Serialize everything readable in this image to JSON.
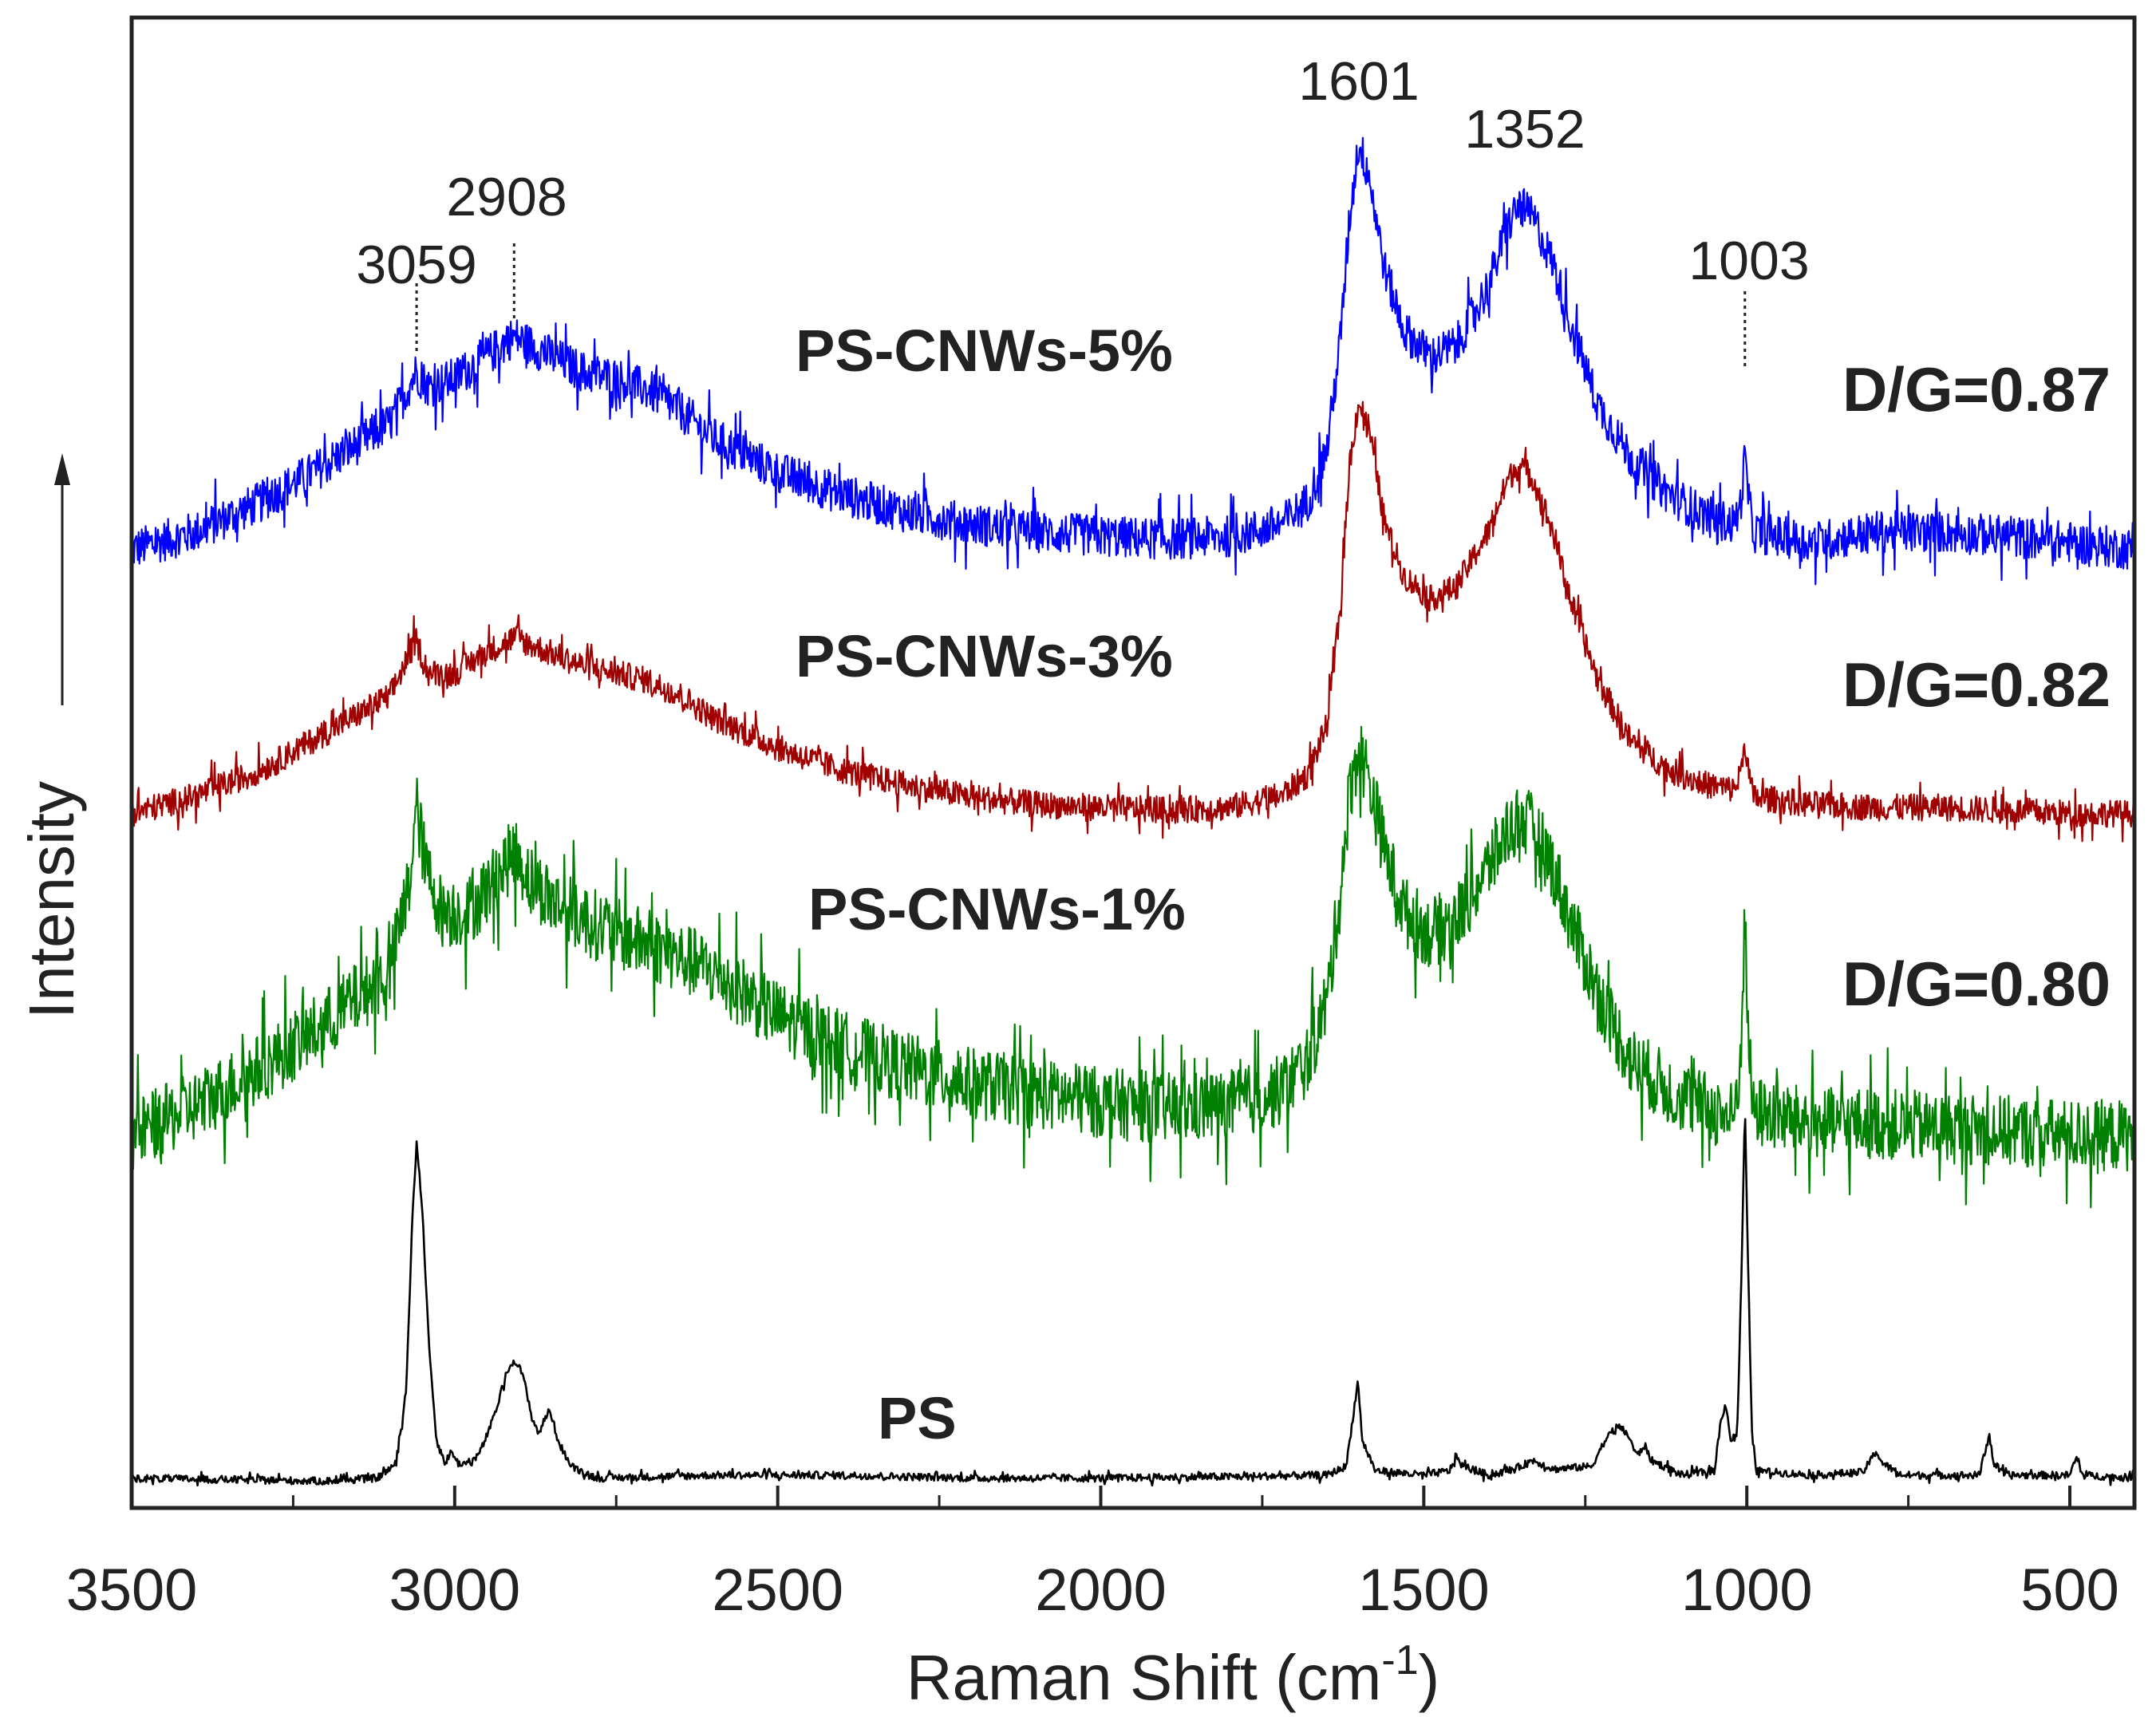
{
  "chart_data": {
    "type": "line",
    "title": "",
    "xlabel_main": "Raman Shift (cm",
    "xlabel_sup": "-1",
    "xlabel_tail": ")",
    "ylabel": "Intensity",
    "x_reversed": true,
    "xlim": [
      3500,
      400
    ],
    "ylim": [
      0,
      1
    ],
    "x_ticks": [
      3500,
      3000,
      2500,
      2000,
      1500,
      1000,
      500
    ],
    "y_ticks": [],
    "grid": false,
    "peak_markers": [
      {
        "x": 3059,
        "label": "3059"
      },
      {
        "x": 2908,
        "label": "2908"
      },
      {
        "x": 1601,
        "label": "1601"
      },
      {
        "x": 1352,
        "label": "1352"
      },
      {
        "x": 1003,
        "label": "1003"
      }
    ],
    "series": [
      {
        "name": "PS-CNWs-5%",
        "color": "#0000ff",
        "ratio_label": "D/G=0.87",
        "noise": 0.014,
        "points": [
          [
            3500,
            0.643
          ],
          [
            3400,
            0.655
          ],
          [
            3300,
            0.675
          ],
          [
            3200,
            0.7
          ],
          [
            3100,
            0.728
          ],
          [
            3060,
            0.762
          ],
          [
            3040,
            0.752
          ],
          [
            3000,
            0.758
          ],
          [
            2960,
            0.77
          ],
          [
            2908,
            0.786
          ],
          [
            2860,
            0.775
          ],
          [
            2800,
            0.762
          ],
          [
            2750,
            0.758
          ],
          [
            2700,
            0.75
          ],
          [
            2650,
            0.736
          ],
          [
            2600,
            0.718
          ],
          [
            2500,
            0.695
          ],
          [
            2400,
            0.68
          ],
          [
            2300,
            0.668
          ],
          [
            2200,
            0.66
          ],
          [
            2100,
            0.655
          ],
          [
            2000,
            0.652
          ],
          [
            1900,
            0.65
          ],
          [
            1800,
            0.652
          ],
          [
            1720,
            0.66
          ],
          [
            1680,
            0.675
          ],
          [
            1650,
            0.71
          ],
          [
            1630,
            0.78
          ],
          [
            1615,
            0.865
          ],
          [
            1601,
            0.915
          ],
          [
            1585,
            0.895
          ],
          [
            1560,
            0.83
          ],
          [
            1530,
            0.79
          ],
          [
            1490,
            0.772
          ],
          [
            1450,
            0.78
          ],
          [
            1400,
            0.82
          ],
          [
            1370,
            0.86
          ],
          [
            1352,
            0.874
          ],
          [
            1330,
            0.865
          ],
          [
            1300,
            0.835
          ],
          [
            1270,
            0.79
          ],
          [
            1230,
            0.74
          ],
          [
            1180,
            0.705
          ],
          [
            1120,
            0.68
          ],
          [
            1060,
            0.665
          ],
          [
            1020,
            0.66
          ],
          [
            1010,
            0.672
          ],
          [
            1003,
            0.705
          ],
          [
            996,
            0.672
          ],
          [
            990,
            0.655
          ],
          [
            900,
            0.648
          ],
          [
            800,
            0.655
          ],
          [
            700,
            0.655
          ],
          [
            600,
            0.652
          ],
          [
            500,
            0.648
          ],
          [
            400,
            0.643
          ]
        ]
      },
      {
        "name": "PS-CNWs-3%",
        "color": "#a10000",
        "ratio_label": "D/G=0.82",
        "noise": 0.009,
        "points": [
          [
            3500,
            0.466
          ],
          [
            3400,
            0.478
          ],
          [
            3300,
            0.495
          ],
          [
            3200,
            0.52
          ],
          [
            3100,
            0.545
          ],
          [
            3060,
            0.582
          ],
          [
            3040,
            0.56
          ],
          [
            3000,
            0.56
          ],
          [
            2960,
            0.572
          ],
          [
            2908,
            0.584
          ],
          [
            2860,
            0.575
          ],
          [
            2800,
            0.565
          ],
          [
            2750,
            0.56
          ],
          [
            2700,
            0.555
          ],
          [
            2650,
            0.545
          ],
          [
            2600,
            0.53
          ],
          [
            2500,
            0.51
          ],
          [
            2400,
            0.495
          ],
          [
            2300,
            0.485
          ],
          [
            2200,
            0.477
          ],
          [
            2100,
            0.472
          ],
          [
            2000,
            0.47
          ],
          [
            1900,
            0.468
          ],
          [
            1800,
            0.47
          ],
          [
            1720,
            0.478
          ],
          [
            1680,
            0.492
          ],
          [
            1650,
            0.525
          ],
          [
            1630,
            0.6
          ],
          [
            1615,
            0.7
          ],
          [
            1601,
            0.742
          ],
          [
            1585,
            0.725
          ],
          [
            1560,
            0.66
          ],
          [
            1530,
            0.625
          ],
          [
            1490,
            0.61
          ],
          [
            1450,
            0.618
          ],
          [
            1400,
            0.655
          ],
          [
            1370,
            0.69
          ],
          [
            1352,
            0.7
          ],
          [
            1330,
            0.69
          ],
          [
            1300,
            0.655
          ],
          [
            1270,
            0.605
          ],
          [
            1230,
            0.555
          ],
          [
            1180,
            0.515
          ],
          [
            1120,
            0.495
          ],
          [
            1060,
            0.485
          ],
          [
            1020,
            0.482
          ],
          [
            1010,
            0.492
          ],
          [
            1003,
            0.515
          ],
          [
            996,
            0.49
          ],
          [
            990,
            0.477
          ],
          [
            900,
            0.472
          ],
          [
            800,
            0.47
          ],
          [
            700,
            0.47
          ],
          [
            600,
            0.468
          ],
          [
            500,
            0.466
          ],
          [
            400,
            0.466
          ]
        ]
      },
      {
        "name": "PS-CNWs-1%",
        "color": "#008000",
        "ratio_label": "D/G=0.80",
        "noise": 0.024,
        "points": [
          [
            3500,
            0.25
          ],
          [
            3400,
            0.27
          ],
          [
            3300,
            0.295
          ],
          [
            3200,
            0.325
          ],
          [
            3100,
            0.36
          ],
          [
            3070,
            0.42
          ],
          [
            3059,
            0.47
          ],
          [
            3045,
            0.43
          ],
          [
            3020,
            0.4
          ],
          [
            2980,
            0.4
          ],
          [
            2940,
            0.42
          ],
          [
            2908,
            0.44
          ],
          [
            2880,
            0.42
          ],
          [
            2840,
            0.405
          ],
          [
            2800,
            0.395
          ],
          [
            2750,
            0.385
          ],
          [
            2700,
            0.378
          ],
          [
            2600,
            0.36
          ],
          [
            2500,
            0.33
          ],
          [
            2400,
            0.31
          ],
          [
            2300,
            0.295
          ],
          [
            2200,
            0.285
          ],
          [
            2100,
            0.278
          ],
          [
            2000,
            0.272
          ],
          [
            1900,
            0.268
          ],
          [
            1800,
            0.27
          ],
          [
            1720,
            0.28
          ],
          [
            1680,
            0.3
          ],
          [
            1650,
            0.34
          ],
          [
            1630,
            0.41
          ],
          [
            1615,
            0.48
          ],
          [
            1601,
            0.51
          ],
          [
            1585,
            0.49
          ],
          [
            1560,
            0.44
          ],
          [
            1530,
            0.4
          ],
          [
            1490,
            0.385
          ],
          [
            1450,
            0.395
          ],
          [
            1400,
            0.43
          ],
          [
            1370,
            0.455
          ],
          [
            1352,
            0.463
          ],
          [
            1330,
            0.455
          ],
          [
            1300,
            0.43
          ],
          [
            1270,
            0.39
          ],
          [
            1230,
            0.345
          ],
          [
            1180,
            0.3
          ],
          [
            1120,
            0.28
          ],
          [
            1060,
            0.268
          ],
          [
            1020,
            0.262
          ],
          [
            1010,
            0.3
          ],
          [
            1003,
            0.395
          ],
          [
            996,
            0.3
          ],
          [
            990,
            0.266
          ],
          [
            900,
            0.258
          ],
          [
            800,
            0.258
          ],
          [
            700,
            0.255
          ],
          [
            600,
            0.253
          ],
          [
            500,
            0.25
          ],
          [
            400,
            0.25
          ]
        ]
      },
      {
        "name": "PS",
        "color": "#000000",
        "ratio_label": "",
        "noise": 0.0025,
        "points": [
          [
            3500,
            0.02
          ],
          [
            3200,
            0.018
          ],
          [
            3120,
            0.02
          ],
          [
            3090,
            0.03
          ],
          [
            3075,
            0.08
          ],
          [
            3065,
            0.2
          ],
          [
            3059,
            0.245
          ],
          [
            3050,
            0.2
          ],
          [
            3040,
            0.11
          ],
          [
            3028,
            0.045
          ],
          [
            3015,
            0.03
          ],
          [
            3005,
            0.038
          ],
          [
            2995,
            0.03
          ],
          [
            2975,
            0.03
          ],
          [
            2960,
            0.038
          ],
          [
            2940,
            0.06
          ],
          [
            2920,
            0.09
          ],
          [
            2908,
            0.1
          ],
          [
            2895,
            0.09
          ],
          [
            2880,
            0.06
          ],
          [
            2870,
            0.05
          ],
          [
            2855,
            0.065
          ],
          [
            2850,
            0.062
          ],
          [
            2840,
            0.045
          ],
          [
            2820,
            0.028
          ],
          [
            2780,
            0.02
          ],
          [
            2600,
            0.022
          ],
          [
            2400,
            0.022
          ],
          [
            2200,
            0.02
          ],
          [
            2000,
            0.02
          ],
          [
            1800,
            0.021
          ],
          [
            1650,
            0.022
          ],
          [
            1620,
            0.028
          ],
          [
            1610,
            0.06
          ],
          [
            1602,
            0.085
          ],
          [
            1595,
            0.045
          ],
          [
            1585,
            0.035
          ],
          [
            1575,
            0.025
          ],
          [
            1500,
            0.022
          ],
          [
            1460,
            0.025
          ],
          [
            1450,
            0.035
          ],
          [
            1440,
            0.028
          ],
          [
            1400,
            0.022
          ],
          [
            1360,
            0.026
          ],
          [
            1330,
            0.032
          ],
          [
            1300,
            0.026
          ],
          [
            1240,
            0.028
          ],
          [
            1220,
            0.045
          ],
          [
            1200,
            0.055
          ],
          [
            1185,
            0.05
          ],
          [
            1170,
            0.035
          ],
          [
            1158,
            0.042
          ],
          [
            1148,
            0.032
          ],
          [
            1100,
            0.022
          ],
          [
            1050,
            0.025
          ],
          [
            1040,
            0.06
          ],
          [
            1032,
            0.07
          ],
          [
            1025,
            0.045
          ],
          [
            1015,
            0.05
          ],
          [
            1008,
            0.16
          ],
          [
            1003,
            0.27
          ],
          [
            998,
            0.16
          ],
          [
            992,
            0.05
          ],
          [
            985,
            0.025
          ],
          [
            900,
            0.022
          ],
          [
            820,
            0.024
          ],
          [
            800,
            0.038
          ],
          [
            790,
            0.03
          ],
          [
            760,
            0.022
          ],
          [
            640,
            0.022
          ],
          [
            625,
            0.05
          ],
          [
            618,
            0.03
          ],
          [
            600,
            0.022
          ],
          [
            500,
            0.022
          ],
          [
            490,
            0.034
          ],
          [
            480,
            0.022
          ],
          [
            400,
            0.02
          ]
        ]
      }
    ],
    "series_labels": [
      {
        "text": "PS-CNWs-5%",
        "color": "#0000ff"
      },
      {
        "text": "PS-CNWs-3%",
        "color": "#a10000"
      },
      {
        "text": "PS-CNWs-1%",
        "color": "#008000"
      },
      {
        "text": "PS",
        "color": "#000000"
      }
    ]
  }
}
